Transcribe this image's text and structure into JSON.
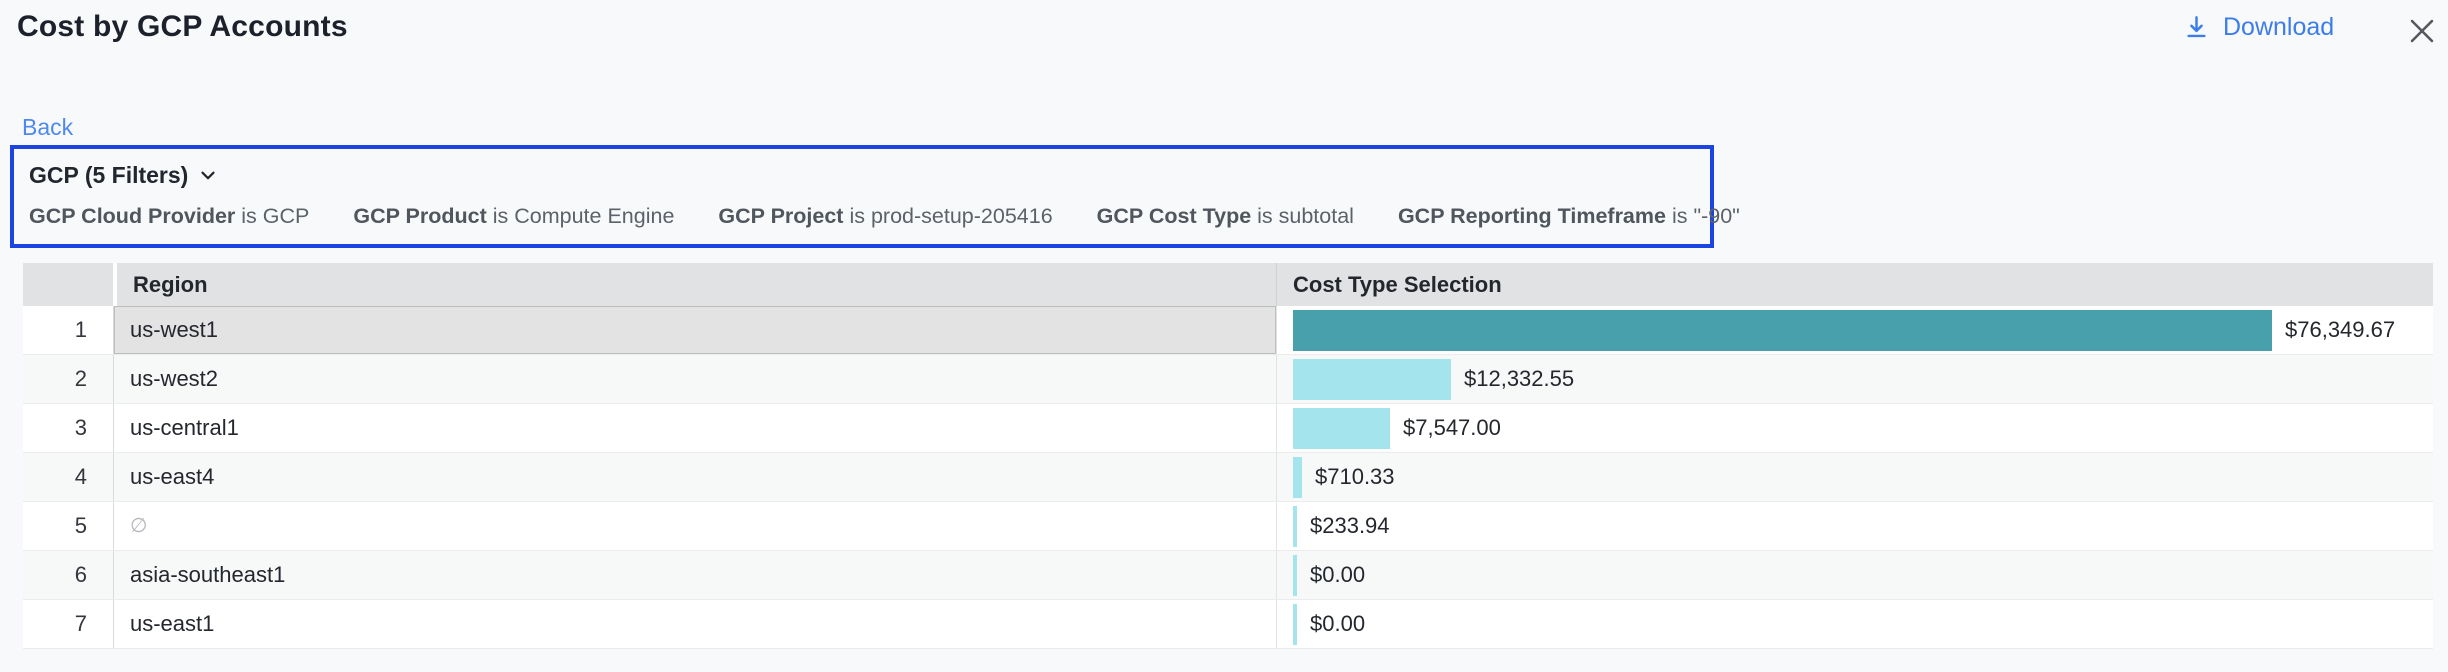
{
  "header": {
    "title": "Cost by GCP Accounts",
    "download_label": "Download"
  },
  "nav": {
    "back_label": "Back"
  },
  "filter_panel": {
    "summary": "GCP (5 Filters)",
    "filters": [
      {
        "label": "GCP Cloud Provider",
        "operator": "is",
        "value": "GCP"
      },
      {
        "label": "GCP Product",
        "operator": "is",
        "value": "Compute Engine"
      },
      {
        "label": "GCP Project",
        "operator": "is",
        "value": "prod-setup-205416"
      },
      {
        "label": "GCP Cost Type",
        "operator": "is",
        "value": "subtotal"
      },
      {
        "label": "GCP Reporting Timeframe",
        "operator": "is",
        "value": "\"-90\""
      }
    ]
  },
  "table": {
    "columns": [
      "Region",
      "Cost Type Selection"
    ],
    "max_value": 76349.67,
    "rows": [
      {
        "index": 1,
        "region": "us-west1",
        "value": 76349.67,
        "value_label": "$76,349.67",
        "selected": true,
        "bar_color": "#47a0ab"
      },
      {
        "index": 2,
        "region": "us-west2",
        "value": 12332.55,
        "value_label": "$12,332.55"
      },
      {
        "index": 3,
        "region": "us-central1",
        "value": 7547.0,
        "value_label": "$7,547.00"
      },
      {
        "index": 4,
        "region": "us-east4",
        "value": 710.33,
        "value_label": "$710.33"
      },
      {
        "index": 5,
        "region": "∅",
        "region_is_null": true,
        "value": 233.94,
        "value_label": "$233.94"
      },
      {
        "index": 6,
        "region": "asia-southeast1",
        "value": 0,
        "value_label": "$0.00"
      },
      {
        "index": 7,
        "region": "us-east1",
        "value": 0,
        "value_label": "$0.00"
      }
    ]
  },
  "chart_data": {
    "type": "bar",
    "title": "Cost by GCP Accounts",
    "categories": [
      "us-west1",
      "us-west2",
      "us-central1",
      "us-east4",
      "∅",
      "asia-southeast1",
      "us-east1"
    ],
    "values": [
      76349.67,
      12332.55,
      7547.0,
      710.33,
      233.94,
      0.0,
      0.0
    ],
    "xlabel": "Cost Type Selection",
    "ylabel": "Region",
    "orientation": "horizontal"
  },
  "icons": {
    "download": "download-icon",
    "close": "close-icon",
    "chevron": "chevron-down-icon"
  },
  "colors": {
    "accent_blue": "#3d7de9",
    "link_blue": "#4f89ee",
    "filter_border_blue": "#1b44e0",
    "bar_teal": "#47a0ab",
    "bar_cyan": "#a4e5ed",
    "header_gray": "#e1e2e3",
    "selected_cell_gray": "#e3e3e4"
  }
}
